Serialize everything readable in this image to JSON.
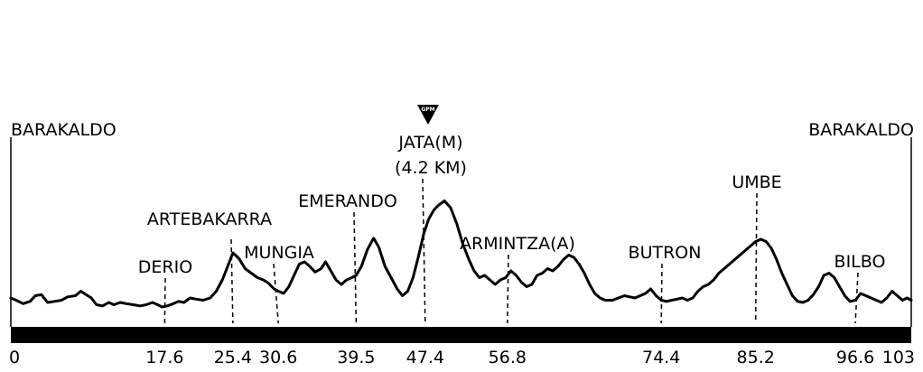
{
  "chart_data": {
    "type": "line",
    "title": "",
    "xlabel": "",
    "ylabel": "",
    "xlim": [
      0,
      103
    ],
    "ylim": [
      0,
      100
    ],
    "grid": false,
    "ticks": [
      "0",
      "17.6",
      "25.4",
      "30.6",
      "39.5",
      "47.4",
      "56.8",
      "74.4",
      "85.2",
      "96.6",
      "103"
    ],
    "start_label": "BARAKALDO",
    "finish_label": "BARAKALDO",
    "climb_marker": "GPM",
    "points": [
      {
        "name": "DERIO",
        "km": 17.6
      },
      {
        "name": "ARTEBAKARRA",
        "km": 25.4
      },
      {
        "name": "MUNGIA",
        "km": 30.6
      },
      {
        "name": "EMERANDO",
        "km": 39.5
      },
      {
        "name": "JATA(M)",
        "sub": "(4.2 KM)",
        "km": 47.4
      },
      {
        "name": "ARMINTZA(A)",
        "km": 56.8
      },
      {
        "name": "BUTRON",
        "km": 74.4
      },
      {
        "name": "UMBE",
        "km": 85.2
      },
      {
        "name": "BILBO",
        "km": 96.6
      }
    ],
    "profile": [
      [
        0,
        12
      ],
      [
        0.6,
        10
      ],
      [
        1.4,
        7
      ],
      [
        2.2,
        9
      ],
      [
        2.8,
        14
      ],
      [
        3.5,
        15
      ],
      [
        4.2,
        8
      ],
      [
        5,
        9
      ],
      [
        5.8,
        10
      ],
      [
        6.5,
        13
      ],
      [
        7.4,
        14
      ],
      [
        8,
        18
      ],
      [
        8.6,
        15
      ],
      [
        9.2,
        12
      ],
      [
        9.8,
        6
      ],
      [
        10.5,
        5
      ],
      [
        11.2,
        8
      ],
      [
        11.8,
        6
      ],
      [
        12.5,
        8
      ],
      [
        13.2,
        7
      ],
      [
        14,
        6
      ],
      [
        14.8,
        5
      ],
      [
        15.5,
        6
      ],
      [
        16.2,
        8
      ],
      [
        16.8,
        6
      ],
      [
        17.3,
        4
      ],
      [
        17.9,
        5
      ],
      [
        18.6,
        7
      ],
      [
        19.2,
        9
      ],
      [
        19.8,
        8
      ],
      [
        20.5,
        12
      ],
      [
        21.2,
        11
      ],
      [
        22,
        10
      ],
      [
        22.8,
        12
      ],
      [
        23.5,
        18
      ],
      [
        24.2,
        28
      ],
      [
        24.8,
        40
      ],
      [
        25.4,
        52
      ],
      [
        26.1,
        47
      ],
      [
        26.8,
        38
      ],
      [
        27.5,
        34
      ],
      [
        28.2,
        30
      ],
      [
        28.9,
        28
      ],
      [
        29.5,
        25
      ],
      [
        30.1,
        20
      ],
      [
        30.6,
        18
      ],
      [
        31.2,
        16
      ],
      [
        31.8,
        22
      ],
      [
        32.4,
        32
      ],
      [
        33,
        42
      ],
      [
        33.6,
        44
      ],
      [
        34.2,
        40
      ],
      [
        34.8,
        35
      ],
      [
        35.5,
        38
      ],
      [
        36,
        44
      ],
      [
        36.6,
        36
      ],
      [
        37.2,
        28
      ],
      [
        37.8,
        24
      ],
      [
        38.4,
        28
      ],
      [
        39,
        30
      ],
      [
        39.5,
        32
      ],
      [
        40.1,
        40
      ],
      [
        40.8,
        55
      ],
      [
        41.5,
        65
      ],
      [
        42.1,
        57
      ],
      [
        42.8,
        40
      ],
      [
        43.5,
        30
      ],
      [
        44.2,
        20
      ],
      [
        44.8,
        14
      ],
      [
        45.4,
        18
      ],
      [
        46,
        30
      ],
      [
        46.6,
        48
      ],
      [
        47.2,
        68
      ],
      [
        47.8,
        82
      ],
      [
        48.4,
        90
      ],
      [
        48.9,
        94
      ],
      [
        49.6,
        98
      ],
      [
        50.3,
        92
      ],
      [
        51,
        78
      ],
      [
        51.7,
        60
      ],
      [
        52.4,
        46
      ],
      [
        53,
        36
      ],
      [
        53.6,
        30
      ],
      [
        54.2,
        32
      ],
      [
        54.8,
        28
      ],
      [
        55.4,
        24
      ],
      [
        56,
        28
      ],
      [
        56.6,
        30
      ],
      [
        57.2,
        36
      ],
      [
        57.8,
        32
      ],
      [
        58.4,
        26
      ],
      [
        59,
        22
      ],
      [
        59.6,
        24
      ],
      [
        60.2,
        32
      ],
      [
        60.8,
        34
      ],
      [
        61.4,
        38
      ],
      [
        62,
        36
      ],
      [
        62.6,
        40
      ],
      [
        63.2,
        46
      ],
      [
        63.8,
        50
      ],
      [
        64.4,
        48
      ],
      [
        65,
        42
      ],
      [
        65.6,
        34
      ],
      [
        66.2,
        24
      ],
      [
        66.8,
        16
      ],
      [
        67.4,
        12
      ],
      [
        68,
        10
      ],
      [
        68.8,
        10
      ],
      [
        69.5,
        12
      ],
      [
        70.2,
        14
      ],
      [
        70.8,
        13
      ],
      [
        71.4,
        12
      ],
      [
        72,
        14
      ],
      [
        72.6,
        16
      ],
      [
        73.2,
        20
      ],
      [
        73.8,
        14
      ],
      [
        74.4,
        10
      ],
      [
        75,
        9
      ],
      [
        75.6,
        10
      ],
      [
        76.2,
        11
      ],
      [
        76.8,
        12
      ],
      [
        77.4,
        10
      ],
      [
        78,
        12
      ],
      [
        78.6,
        18
      ],
      [
        79.2,
        22
      ],
      [
        79.8,
        24
      ],
      [
        80.4,
        28
      ],
      [
        81,
        34
      ],
      [
        81.6,
        38
      ],
      [
        82.2,
        42
      ],
      [
        82.8,
        46
      ],
      [
        83.4,
        50
      ],
      [
        84,
        54
      ],
      [
        84.6,
        58
      ],
      [
        85.2,
        62
      ],
      [
        85.8,
        64
      ],
      [
        86.4,
        62
      ],
      [
        87,
        56
      ],
      [
        87.6,
        46
      ],
      [
        88.2,
        34
      ],
      [
        88.8,
        24
      ],
      [
        89.4,
        14
      ],
      [
        90,
        9
      ],
      [
        90.6,
        8
      ],
      [
        91.2,
        10
      ],
      [
        91.8,
        15
      ],
      [
        92.4,
        22
      ],
      [
        93,
        32
      ],
      [
        93.6,
        34
      ],
      [
        94.2,
        30
      ],
      [
        94.8,
        22
      ],
      [
        95.4,
        14
      ],
      [
        96,
        9
      ],
      [
        96.6,
        10
      ],
      [
        97.2,
        16
      ],
      [
        97.8,
        14
      ],
      [
        98.4,
        12
      ],
      [
        99,
        10
      ],
      [
        99.6,
        8
      ],
      [
        100.2,
        12
      ],
      [
        100.8,
        18
      ],
      [
        101.4,
        14
      ],
      [
        102,
        10
      ],
      [
        102.5,
        12
      ],
      [
        103,
        10
      ]
    ]
  }
}
